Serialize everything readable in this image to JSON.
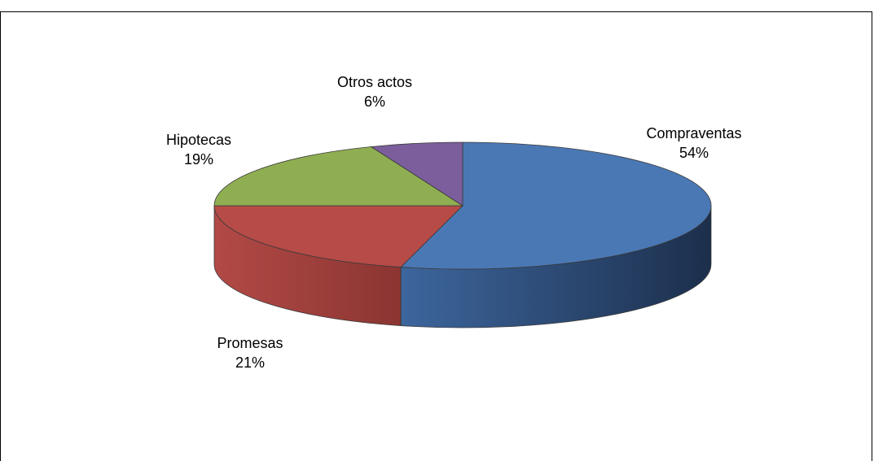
{
  "chart_data": {
    "type": "pie",
    "title": "",
    "style": "3d",
    "slices": [
      {
        "label": "Compraventas",
        "value": 54,
        "value_label": "54%",
        "color": "#4a78b5",
        "side_color": "#2e4f7e"
      },
      {
        "label": "Promesas",
        "value": 21,
        "value_label": "21%",
        "color": "#b64b47",
        "side_color": "#8a3230"
      },
      {
        "label": "Hipotecas",
        "value": 19,
        "value_label": "19%",
        "color": "#8fae52",
        "side_color": "#65803a"
      },
      {
        "label": "Otros actos",
        "value": 6,
        "value_label": "6%",
        "color": "#7b5e9b",
        "side_color": "#574170"
      }
    ]
  }
}
